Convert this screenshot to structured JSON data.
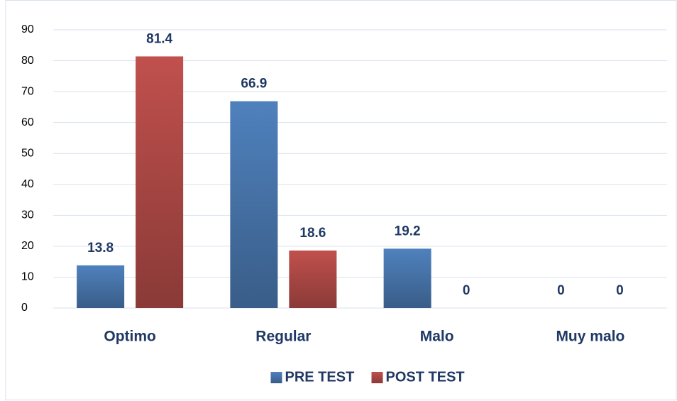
{
  "chart_data": {
    "type": "bar",
    "categories": [
      "Optimo",
      "Regular",
      "Malo",
      "Muy malo"
    ],
    "series": [
      {
        "name": "PRE TEST",
        "color": "#4f81bd",
        "values": [
          13.8,
          66.9,
          19.2,
          0
        ]
      },
      {
        "name": "POST TEST",
        "color": "#c0504d",
        "values": [
          81.4,
          18.6,
          0,
          0
        ]
      }
    ],
    "ylim": [
      0,
      90
    ],
    "yticks": [
      0,
      10,
      20,
      30,
      40,
      50,
      60,
      70,
      80,
      90
    ],
    "grid": true,
    "legend": "bottom"
  }
}
